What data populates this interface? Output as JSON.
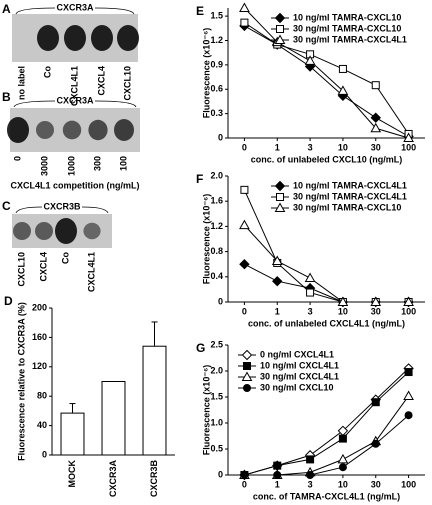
{
  "gels": [
    {
      "label": "A",
      "title": "CXCR3A",
      "lanes": [
        "no label",
        "Co",
        "CXCL4L1",
        "CXCL4",
        "CXCL10"
      ]
    },
    {
      "label": "B",
      "title": "CXCR3A",
      "lanes": [
        "0",
        "3000",
        "1000",
        "300",
        "100"
      ],
      "xlabel": "CXCL4L1 competition (ng/mL)"
    },
    {
      "label": "C",
      "title": "CXCR3B",
      "lanes": [
        "CXCL10",
        "CXCL4",
        "Co",
        "CXCL4L1"
      ]
    }
  ],
  "chart_data": [
    {
      "type": "bar",
      "label": "D",
      "ylabel": "Fluorescence relative to CXCR3A (%)",
      "categories": [
        "MOCK",
        "CXCR3A",
        "CXCR3B"
      ],
      "values": [
        57,
        100,
        148
      ],
      "errors": [
        13,
        null,
        33
      ],
      "color": "#ffffff",
      "ylim": [
        0,
        200
      ],
      "yticks": [
        0,
        40,
        80,
        120,
        160,
        200
      ]
    },
    {
      "type": "line",
      "label": "E",
      "ylabel": "Fluorescence (x10⁻⁶)",
      "xlabel": "conc. of unlabeled CXCL10 (ng/mL)",
      "categories": [
        "0",
        "1",
        "3",
        "10",
        "30",
        "100"
      ],
      "ylim": [
        0,
        1.6
      ],
      "yticks": [
        0,
        0.3,
        0.6,
        0.9,
        1.2,
        1.5
      ],
      "legend": "upper right",
      "series": [
        {
          "name": "10 ng/ml TAMRA-CXCL10",
          "color": "#000000",
          "marker": "diamond",
          "filled": true,
          "values": [
            1.38,
            1.15,
            0.88,
            0.52,
            0.25,
            0.02
          ]
        },
        {
          "name": "30 ng/ml TAMRA-CXCL10",
          "color": "#000000",
          "marker": "square",
          "filled": false,
          "values": [
            1.42,
            1.15,
            1.03,
            0.85,
            0.65,
            0.05
          ]
        },
        {
          "name": "30 ng/ml TAMRA-CXCL4L1",
          "color": "#000000",
          "marker": "triangle",
          "filled": false,
          "values": [
            1.6,
            1.18,
            0.95,
            0.58,
            0.12,
            0.0
          ]
        }
      ]
    },
    {
      "type": "line",
      "label": "F",
      "ylabel": "Fluorescence (x10⁻⁶)",
      "xlabel": "conc. of unlabeled CXCL4L1 (ng/mL)",
      "categories": [
        "0",
        "1",
        "3",
        "10",
        "30",
        "100"
      ],
      "ylim": [
        0,
        2
      ],
      "yticks": [
        0,
        0.4,
        0.8,
        1.2,
        1.6,
        {
          "value": 2,
          "label": "2.0"
        }
      ],
      "legend": "upper right",
      "series": [
        {
          "name": "10 ng/ml TAMRA-CXCL4L1",
          "color": "#000000",
          "marker": "diamond",
          "filled": true,
          "values": [
            0.6,
            0.33,
            0.22,
            0,
            0,
            0
          ]
        },
        {
          "name": "30 ng/ml TAMRA-CXCL4L1",
          "color": "#000000",
          "marker": "square",
          "filled": false,
          "values": [
            1.78,
            0.62,
            0.15,
            0,
            0,
            0
          ]
        },
        {
          "name": "30 ng/ml TAMRA-CXCL10",
          "color": "#000000",
          "marker": "triangle",
          "filled": false,
          "values": [
            1.22,
            0.65,
            0.38,
            0,
            0,
            0
          ]
        }
      ]
    },
    {
      "type": "line",
      "label": "G",
      "ylabel": "Fluorescence (x10⁻⁶)",
      "xlabel": "conc. of TAMRA-CXCL4L1 (ng/mL)",
      "categories": [
        "0",
        "1",
        "3",
        "10",
        "30",
        "100"
      ],
      "ylim": [
        0,
        2.5
      ],
      "yticks": [
        0,
        0.5,
        {
          "value": 1,
          "label": "1.0"
        },
        1.5,
        {
          "value": 2,
          "label": "2.0"
        },
        2.5
      ],
      "legend": "upper left",
      "series": [
        {
          "name": "0 ng/ml CXCL4L1",
          "color": "#000000",
          "marker": "diamond",
          "filled": false,
          "values": [
            0,
            0.18,
            0.38,
            0.85,
            1.45,
            2.05
          ]
        },
        {
          "name": "10 ng/ml CXCL4L1",
          "color": "#000000",
          "marker": "square",
          "filled": true,
          "values": [
            0,
            0.18,
            0.3,
            0.7,
            1.4,
            1.98
          ]
        },
        {
          "name": "30 ng/ml CXCL4L1",
          "color": "#000000",
          "marker": "triangle",
          "filled": false,
          "values": [
            0,
            0,
            0.05,
            0.3,
            0.65,
            1.52
          ]
        },
        {
          "name": "30 ng/ml CXCL10",
          "color": "#000000",
          "marker": "circle",
          "filled": true,
          "values": [
            0,
            0,
            0,
            0.15,
            0.6,
            1.15
          ]
        }
      ]
    }
  ]
}
